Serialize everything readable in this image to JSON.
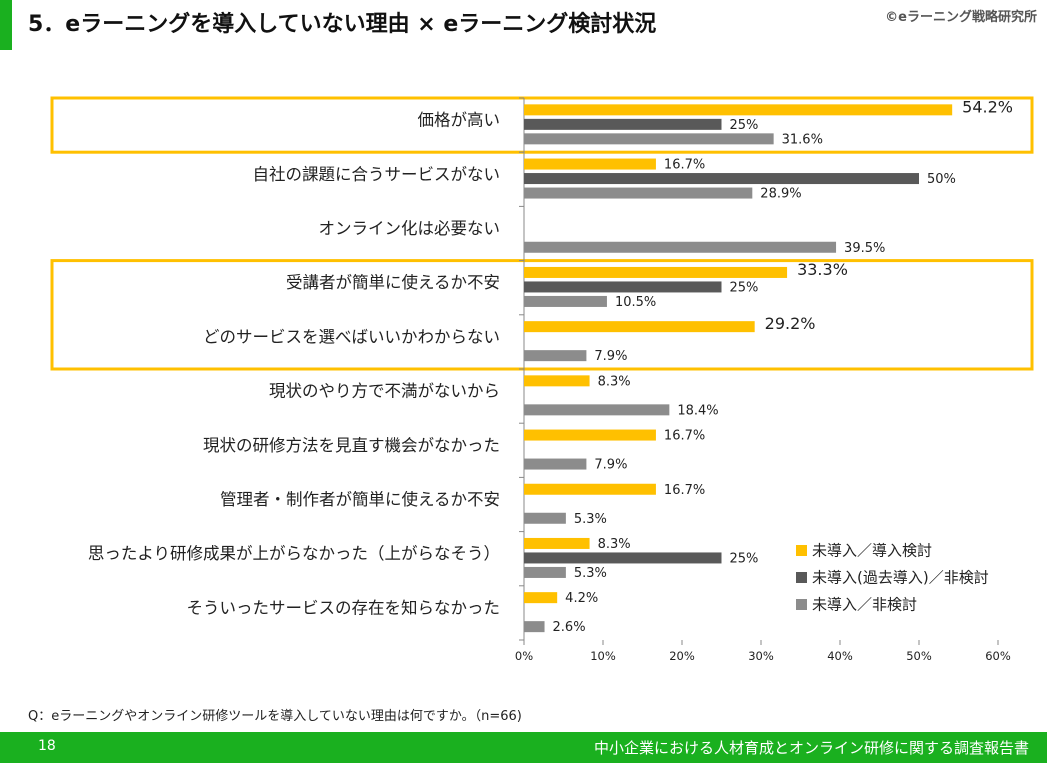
{
  "page_title": "5．eラーニングを導入していない理由 × eラーニング検討状況",
  "copyright": "©eラーニング戦略研究所",
  "question": "Q：eラーニングやオンライン研修ツールを導入していない理由は何ですか。（n=66)",
  "footer": {
    "page_number": "18",
    "report_title": "中小企業における人材育成とオンライン研修に関する調査報告書"
  },
  "colors": {
    "accent": "#1ab01f",
    "highlight_frame": "#ffc000"
  },
  "chart_data": {
    "type": "bar",
    "orientation": "horizontal",
    "categories": [
      "価格が高い",
      "自社の課題に合うサービスがない",
      "オンライン化は必要ない",
      "受講者が簡単に使えるか不安",
      "どのサービスを選べばいいかわからない",
      "現状のやり方で不満がないから",
      "現状の研修方法を見直す機会がなかった",
      "管理者・制作者が簡単に使えるか不安",
      "思ったより研修成果が上がらなかった（上がらなそう）",
      "そういったサービスの存在を知らなかった"
    ],
    "series": [
      {
        "name": "未導入／導入検討",
        "color": "#ffc000",
        "values": [
          54.2,
          16.7,
          null,
          33.3,
          29.2,
          8.3,
          16.7,
          16.7,
          8.3,
          4.2
        ],
        "labels": [
          "54.2%",
          "16.7%",
          "",
          "33.3%",
          "29.2%",
          "8.3%",
          "16.7%",
          "16.7%",
          "8.3%",
          "4.2%"
        ]
      },
      {
        "name": "未導入(過去導入)／非検討",
        "color": "#595959",
        "values": [
          25,
          50,
          null,
          25,
          null,
          null,
          null,
          null,
          25,
          null
        ],
        "labels": [
          "25%",
          "50%",
          "",
          "25%",
          "",
          "",
          "",
          "",
          "25%",
          ""
        ]
      },
      {
        "name": "未導入／非検討",
        "color": "#8c8c8c",
        "values": [
          31.6,
          28.9,
          39.5,
          10.5,
          7.9,
          18.4,
          7.9,
          5.3,
          5.3,
          2.6
        ],
        "labels": [
          "31.6%",
          "28.9%",
          "39.5%",
          "10.5%",
          "7.9%",
          "18.4%",
          "7.9%",
          "5.3%",
          "5.3%",
          "2.6%"
        ]
      }
    ],
    "xlim": [
      0,
      60
    ],
    "xticks": [
      "0%",
      "10%",
      "20%",
      "30%",
      "40%",
      "50%",
      "60%"
    ],
    "highlighted_categories": [
      [
        0
      ],
      [
        3,
        4
      ]
    ],
    "legend_position": "bottom-right",
    "grid": false
  }
}
